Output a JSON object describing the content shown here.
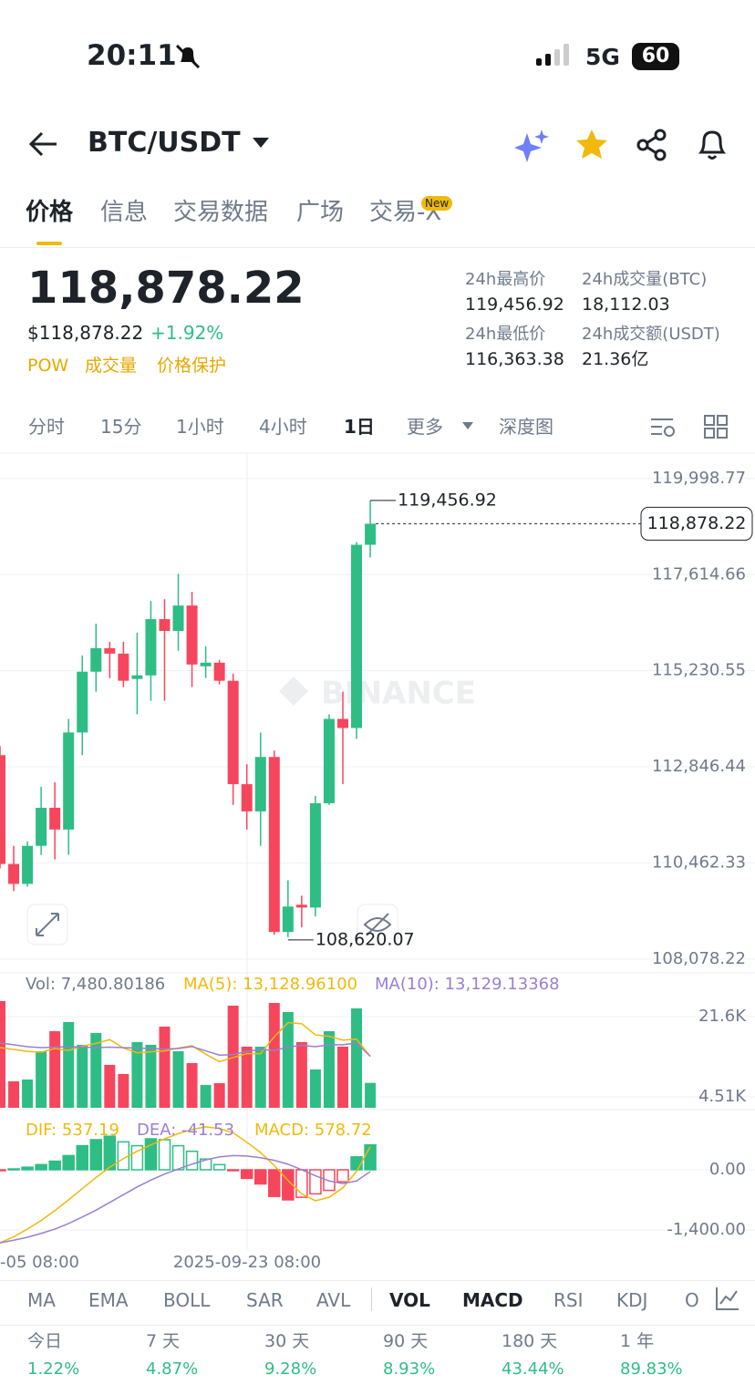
{
  "status_bar": {
    "time": "20:11",
    "network": "5G",
    "battery": "60"
  },
  "header": {
    "pair": "BTC/USDT"
  },
  "tabs": [
    "价格",
    "信息",
    "交易数据",
    "广场",
    "交易-X"
  ],
  "tab_badge": "New",
  "price": {
    "last": "118,878.22",
    "usd": "$118,878.22",
    "change": "+1.92%",
    "tags": [
      "POW",
      "成交量",
      "价格保护"
    ]
  },
  "stats": [
    {
      "label": "24h最高价",
      "value": "119,456.92"
    },
    {
      "label": "24h成交量(BTC)",
      "value": "18,112.03"
    },
    {
      "label": "24h最低价",
      "value": "116,363.38"
    },
    {
      "label": "24h成交额(USDT)",
      "value": "21.36亿"
    }
  ],
  "intervals": [
    "分时",
    "15分",
    "1小时",
    "4小时",
    "1日",
    "更多",
    "深度图"
  ],
  "kline": {
    "type": "candlestick",
    "watermark": "BINANCE",
    "up_color": "#2ebd85",
    "down_color": "#f6465d",
    "ylim": [
      107780,
      120630
    ],
    "yticks": [
      {
        "value": 119998.77,
        "label": "119,998.77"
      },
      {
        "value": 117614.66,
        "label": "117,614.66"
      },
      {
        "value": 115230.55,
        "label": "115,230.55"
      },
      {
        "value": 112846.44,
        "label": "112,846.44"
      },
      {
        "value": 110462.33,
        "label": "110,462.33"
      },
      {
        "value": 108078.22,
        "label": "108,078.22"
      }
    ],
    "open": [
      113136,
      110436,
      109942,
      110886,
      111831,
      111291,
      113699,
      115207,
      115792,
      115656,
      115026,
      115116,
      116511,
      116219,
      116849,
      115341,
      115431,
      114982,
      112416,
      111741,
      113091,
      108749,
      109424,
      109356,
      111944,
      114036,
      113811,
      118356
    ],
    "high": [
      113361,
      110886,
      110999,
      112349,
      112461,
      114036,
      115611,
      116399,
      115949,
      115949,
      116174,
      116961,
      117006,
      117636,
      117186,
      115836,
      115499,
      115161,
      112911,
      113699,
      113249,
      110031,
      109649,
      112124,
      114149,
      114711,
      118424,
      119456.92
    ],
    "low": [
      110324,
      109762,
      109874,
      110661,
      110549,
      110661,
      113136,
      114711,
      115049,
      114824,
      114149,
      114486,
      114486,
      115724,
      114824,
      115049,
      114892,
      111899,
      111291,
      110886,
      108680,
      108620.07,
      108862,
      109132,
      111899,
      112416,
      113541,
      118041
    ],
    "close": [
      110436,
      109942,
      110886,
      111831,
      111291,
      113699,
      115207,
      115792,
      115656,
      114982,
      115116,
      116511,
      116219,
      116849,
      115386,
      115431,
      114982,
      112416,
      111741,
      113091,
      108749,
      109379,
      109356,
      111944,
      114036,
      113811,
      118356,
      118878.22
    ],
    "high_label": {
      "value": 119456.92,
      "label": "119,456.92"
    },
    "low_label": {
      "value": 108620.07,
      "label": "108,620.07"
    },
    "last_label": {
      "value": 118878.22,
      "label": "118,878.22"
    },
    "xlabels": [
      "-05 08:00",
      "2025-09-23 08:00"
    ],
    "volume": {
      "legend": [
        "Vol: 7,480.80186",
        "MA(5): 13,128.96100",
        "MA(10): 13,129.13368"
      ],
      "ma5_color": "#f0b90b",
      "ma10_color": "#9b7fd1",
      "ylim": [
        2180,
        25480
      ],
      "yticks": [
        {
          "value": 21600,
          "label": "21.6K"
        },
        {
          "value": 4510,
          "label": "4.51K"
        }
      ],
      "values": [
        24900,
        7820,
        8210,
        14230,
        18500,
        20440,
        15590,
        18110,
        11320,
        9380,
        16180,
        15590,
        19470,
        14230,
        11710,
        7050,
        7430,
        23930,
        15200,
        15200,
        24510,
        22570,
        16180,
        10350,
        18500,
        15200,
        23350,
        7480.80186
      ],
      "ma5": [
        15000,
        14600,
        14200,
        14000,
        14800,
        14400,
        15300,
        15900,
        16700,
        14900,
        13900,
        14100,
        14300,
        14900,
        15400,
        13600,
        12000,
        12900,
        13700,
        13700,
        17300,
        20300,
        20100,
        17700,
        17400,
        16600,
        16800,
        13128.961
      ],
      "ma10": [
        16000,
        15600,
        15200,
        15000,
        15100,
        15200,
        15100,
        15000,
        15100,
        15000,
        14900,
        14800,
        14700,
        14800,
        15200,
        14300,
        13400,
        13500,
        14200,
        14600,
        14400,
        15100,
        15500,
        15200,
        15600,
        15600,
        16000,
        13129.13368
      ]
    },
    "macd": {
      "legend": [
        "DIF: 537.19",
        "DEA: -41.53",
        "MACD: 578.72"
      ],
      "dif_color": "#f0b90b",
      "dea_color": "#9b7fd1",
      "ylim": [
        -1740,
        1230
      ],
      "yticks": [
        {
          "value": 0,
          "label": "0.00"
        },
        {
          "value": -1400,
          "label": "-1,400.00"
        }
      ],
      "hist": [
        -10,
        20,
        60,
        120,
        200,
        330,
        560,
        700,
        780,
        650,
        560,
        720,
        700,
        560,
        430,
        250,
        120,
        -20,
        -200,
        -330,
        -620,
        -700,
        -640,
        -560,
        -480,
        -280,
        300,
        578.72
      ],
      "dif": [
        -1700,
        -1560,
        -1380,
        -1180,
        -950,
        -700,
        -440,
        -180,
        60,
        260,
        430,
        580,
        720,
        840,
        940,
        1000,
        960,
        860,
        640,
        400,
        100,
        -250,
        -560,
        -720,
        -640,
        -420,
        -40,
        537.19
      ],
      "dea": [
        -1700,
        -1640,
        -1570,
        -1480,
        -1380,
        -1250,
        -1100,
        -940,
        -760,
        -580,
        -400,
        -240,
        -100,
        20,
        130,
        230,
        300,
        330,
        320,
        280,
        220,
        130,
        0,
        -140,
        -260,
        -320,
        -260,
        -41.53
      ]
    }
  },
  "indicators": [
    "MA",
    "EMA",
    "BOLL",
    "SAR",
    "AVL",
    "VOL",
    "MACD",
    "RSI",
    "KDJ",
    "O"
  ],
  "performance": [
    {
      "period": "今日",
      "change": "1.22%"
    },
    {
      "period": "7 天",
      "change": "4.87%"
    },
    {
      "period": "30 天",
      "change": "9.28%"
    },
    {
      "period": "90 天",
      "change": "8.93%"
    },
    {
      "period": "180 天",
      "change": "43.44%"
    },
    {
      "period": "1 年",
      "change": "89.83%"
    }
  ]
}
